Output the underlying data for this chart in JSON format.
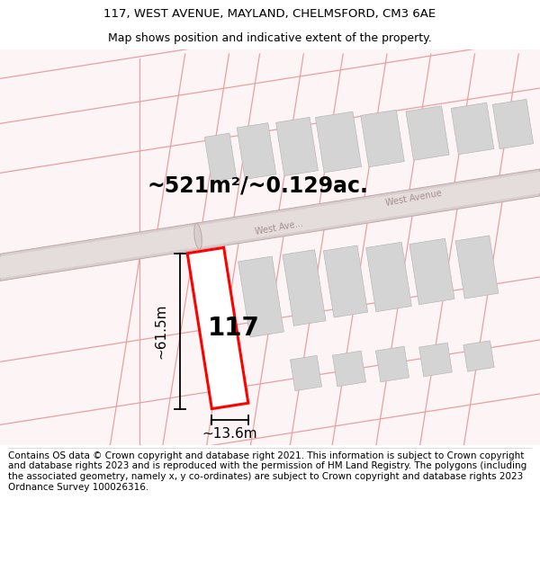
{
  "title_line1": "117, WEST AVENUE, MAYLAND, CHELMSFORD, CM3 6AE",
  "title_line2": "Map shows position and indicative extent of the property.",
  "footer_text": "Contains OS data © Crown copyright and database right 2021. This information is subject to Crown copyright and database rights 2023 and is reproduced with the permission of HM Land Registry. The polygons (including the associated geometry, namely x, y co-ordinates) are subject to Crown copyright and database rights 2023 Ordnance Survey 100026316.",
  "area_label": "~521m²/~0.129ac.",
  "width_label": "~13.6m",
  "height_label": "~61.5m",
  "number_label": "117",
  "road_label_upper": "West Avenue",
  "road_label_lower": "West Ave...",
  "bg_color": "#ffffff",
  "map_bg": "#fdf5f5",
  "plot_line_color": "#e8a0a0",
  "road_fill": "#ddd0d0",
  "road_edge": "#c8a8a8",
  "road_inner_fill": "#e8e0e0",
  "building_fill": "#d4d4d4",
  "building_edge": "#b8b8b8",
  "plot_fill": "#ffffff",
  "plot_edge": "#ff0000",
  "dim_color": "#000000",
  "title_fontsize": 9.5,
  "subtitle_fontsize": 9,
  "footer_fontsize": 7.5,
  "area_fontsize": 17,
  "dim_fontsize": 11,
  "number_fontsize": 20,
  "road_label_fontsize": 7
}
